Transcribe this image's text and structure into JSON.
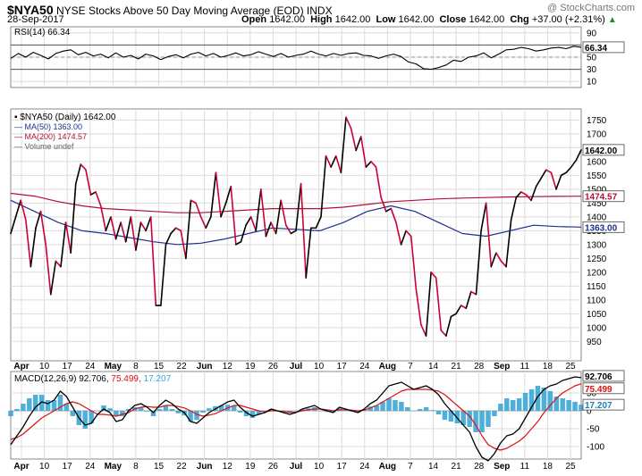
{
  "header": {
    "symbol": "$NYA50",
    "name": "NYSE Stocks Above 50 Day Moving Average (EOD)",
    "exchange": "INDX",
    "watermark": "@ StockCharts.com",
    "date": "28-Sep-2017",
    "quote": [
      {
        "label": "Open",
        "value": "1642.00"
      },
      {
        "label": "High",
        "value": "1642.00"
      },
      {
        "label": "Low",
        "value": "1642.00"
      },
      {
        "label": "Close",
        "value": "1642.00"
      },
      {
        "label": "Chg",
        "value": "+37.00 (+2.31%)"
      }
    ],
    "trend_icon": "up-triangle-icon"
  },
  "colors": {
    "price": "#000000",
    "price_down": "#cc0033",
    "ma50": "#1f2f8c",
    "ma200": "#b0103a",
    "histogram": "#3ba7d6",
    "macd_line": "#000000",
    "signal_line": "#dd1111",
    "grid": "#dcdcdc"
  },
  "chart_data": [
    {
      "type": "line",
      "panel": "rsi",
      "legend": "RSI(14) 66.34",
      "last_value": "66.34",
      "ylim": [
        0,
        100
      ],
      "yticks": [
        10,
        30,
        50,
        70,
        90
      ],
      "levels": [
        30,
        70
      ],
      "series": [
        {
          "name": "RSI(14)",
          "values": [
            48,
            56,
            50,
            58,
            53,
            47,
            56,
            60,
            62,
            54,
            58,
            52,
            55,
            49,
            57,
            50,
            53,
            47,
            55,
            52,
            46,
            51,
            54,
            49,
            55,
            58,
            52,
            56,
            50,
            53,
            57,
            52,
            54,
            59,
            55,
            51,
            56,
            50,
            53,
            55,
            60,
            55,
            52,
            56,
            53,
            56,
            57,
            53,
            52,
            48,
            52,
            55,
            51,
            42,
            39,
            31,
            30,
            33,
            37,
            45,
            43,
            50,
            52,
            57,
            49,
            55,
            62,
            63,
            66,
            64,
            60,
            62,
            65,
            66,
            64,
            68,
            66.34
          ]
        }
      ]
    },
    {
      "type": "line",
      "panel": "price",
      "ylim": [
        880,
        1790
      ],
      "yticks": [
        950,
        1000,
        1050,
        1100,
        1150,
        1200,
        1250,
        1300,
        1350,
        1400,
        1450,
        1500,
        1550,
        1600,
        1650,
        1700,
        1750
      ],
      "xlabels": [
        "Apr",
        "10",
        "17",
        "24",
        "May",
        "8",
        "15",
        "22",
        "Jun",
        "12",
        "19",
        "26",
        "Jul",
        "10",
        "17",
        "24",
        "Aug",
        "7",
        "14",
        "21",
        "28",
        "Sep",
        "11",
        "18",
        "25"
      ],
      "legend": [
        {
          "text": "$NYA50 (Daily) 1642.00",
          "color": "#000000"
        },
        {
          "text": "MA(50) 1363.00",
          "color": "#1f2f8c"
        },
        {
          "text": "MA(200) 1474.57",
          "color": "#b0103a"
        },
        {
          "text": "Volume undef",
          "color": "#666666"
        }
      ],
      "series": [
        {
          "name": "$NYA50 (Daily)",
          "last_label": "1642.00",
          "values": [
            1340,
            1400,
            1460,
            1390,
            1220,
            1360,
            1420,
            1300,
            1120,
            1240,
            1220,
            1380,
            1270,
            1520,
            1590,
            1570,
            1480,
            1490,
            1440,
            1350,
            1400,
            1320,
            1380,
            1310,
            1400,
            1280,
            1380,
            1350,
            1400,
            1080,
            1080,
            1300,
            1340,
            1360,
            1350,
            1250,
            1460,
            1450,
            1400,
            1360,
            1400,
            1560,
            1400,
            1450,
            1510,
            1300,
            1310,
            1370,
            1400,
            1350,
            1500,
            1330,
            1380,
            1340,
            1460,
            1370,
            1340,
            1350,
            1520,
            1180,
            1360,
            1360,
            1400,
            1620,
            1580,
            1620,
            1560,
            1760,
            1720,
            1640,
            1690,
            1580,
            1600,
            1580,
            1470,
            1420,
            1430,
            1380,
            1300,
            1350,
            1330,
            1140,
            1010,
            970,
            1200,
            1180,
            990,
            970,
            1040,
            1050,
            1080,
            1070,
            1130,
            1120,
            1350,
            1450,
            1220,
            1270,
            1240,
            1220,
            1390,
            1470,
            1490,
            1480,
            1460,
            1510,
            1540,
            1570,
            1560,
            1500,
            1550,
            1560,
            1580,
            1605,
            1642
          ]
        },
        {
          "name": "MA(50)",
          "last_label": "1363.00",
          "values": [
            1460,
            1420,
            1380,
            1350,
            1340,
            1325,
            1310,
            1300,
            1305,
            1320,
            1340,
            1360,
            1355,
            1350,
            1380,
            1420,
            1440,
            1420,
            1380,
            1340,
            1330,
            1350,
            1370,
            1365,
            1363
          ]
        },
        {
          "name": "MA(200)",
          "last_label": "1474.57",
          "values": [
            1485,
            1475,
            1455,
            1440,
            1430,
            1425,
            1420,
            1415,
            1415,
            1420,
            1425,
            1430,
            1430,
            1430,
            1435,
            1445,
            1455,
            1460,
            1465,
            1468,
            1470,
            1472,
            1473,
            1474,
            1474.57
          ]
        }
      ]
    },
    {
      "type": "line",
      "panel": "macd",
      "legend_prefix": "MACD(12,26,9)",
      "legend_values": [
        "92.706",
        "75.499",
        "17.207"
      ],
      "legend_colors": [
        "#000000",
        "#dd1111",
        "#3ba7d6"
      ],
      "ylim": [
        -135,
        110
      ],
      "yticks": [
        -100,
        -50,
        0,
        50
      ],
      "xlabels": [
        "Apr",
        "10",
        "17",
        "24",
        "May",
        "8",
        "15",
        "22",
        "Jun",
        "12",
        "19",
        "26",
        "Jul",
        "10",
        "17",
        "24",
        "Aug",
        "7",
        "14",
        "21",
        "28",
        "Sep",
        "11",
        "18",
        "25"
      ],
      "series": [
        {
          "name": "MACD",
          "last_label": "92.706",
          "values": [
            -95,
            -70,
            -45,
            -15,
            10,
            25,
            20,
            30,
            55,
            40,
            10,
            -20,
            -40,
            -35,
            -10,
            5,
            -5,
            -30,
            -25,
            0,
            15,
            20,
            10,
            -5,
            15,
            30,
            20,
            5,
            -5,
            -30,
            -35,
            -20,
            -5,
            5,
            15,
            25,
            30,
            10,
            -5,
            -15,
            -10,
            -5,
            5,
            0,
            -5,
            -10,
            -5,
            5,
            10,
            15,
            5,
            0,
            -5,
            10,
            5,
            0,
            -5,
            5,
            20,
            30,
            50,
            70,
            75,
            80,
            70,
            60,
            65,
            70,
            60,
            45,
            20,
            0,
            -20,
            -40,
            -60,
            -100,
            -130,
            -140,
            -120,
            -90,
            -70,
            -65,
            -50,
            -20,
            10,
            40,
            60,
            70,
            75,
            85,
            90,
            95,
            92.706
          ]
        },
        {
          "name": "Signal",
          "last_label": "75.499",
          "values": [
            -80,
            -75,
            -65,
            -50,
            -35,
            -20,
            -10,
            0,
            10,
            20,
            25,
            20,
            10,
            0,
            -10,
            -10,
            -12,
            -15,
            -10,
            -5,
            5,
            10,
            12,
            10,
            10,
            15,
            15,
            12,
            8,
            0,
            -10,
            -15,
            -12,
            -8,
            0,
            8,
            15,
            15,
            10,
            5,
            0,
            -3,
            0,
            0,
            -2,
            -4,
            -4,
            0,
            3,
            5,
            5,
            3,
            0,
            3,
            3,
            2,
            0,
            2,
            8,
            15,
            25,
            35,
            45,
            55,
            60,
            60,
            60,
            60,
            58,
            55,
            45,
            30,
            15,
            0,
            -15,
            -40,
            -70,
            -95,
            -105,
            -110,
            -105,
            -95,
            -85,
            -70,
            -50,
            -30,
            -5,
            15,
            35,
            50,
            60,
            70,
            75.499
          ]
        }
      ],
      "histogram_last_label": "17.207"
    }
  ]
}
